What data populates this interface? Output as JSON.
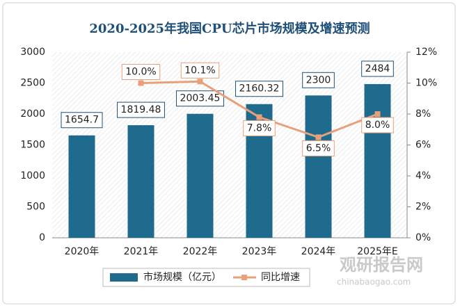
{
  "chart_data": {
    "type": "bar-line",
    "title": "2020-2025年我国CPU芯片市场规模及增速预测",
    "categories": [
      "2020年",
      "2021年",
      "2022年",
      "2023年",
      "2024年",
      "2025年E"
    ],
    "series": [
      {
        "name": "市场规模（亿元）",
        "type": "bar",
        "color": "#1f6b8e",
        "values": [
          1654.7,
          1819.48,
          2003.45,
          2160.32,
          2300,
          2484
        ]
      },
      {
        "name": "同比增速",
        "type": "line",
        "axis": "y2",
        "color": "#e8a07a",
        "values": [
          null,
          10.0,
          10.1,
          7.8,
          6.5,
          8.0
        ],
        "value_labels": [
          null,
          "10.0%",
          "10.1%",
          "7.8%",
          "6.5%",
          "8.0%"
        ]
      }
    ],
    "ylim": [
      0,
      3000
    ],
    "yticks": [
      0,
      500,
      1000,
      1500,
      2000,
      2500,
      3000
    ],
    "y2lim": [
      0,
      12
    ],
    "y2ticks": [
      {
        "value": 0,
        "label": "0%"
      },
      {
        "value": 2,
        "label": "2%"
      },
      {
        "value": 4,
        "label": "4%"
      },
      {
        "value": 6,
        "label": "6%"
      },
      {
        "value": 8,
        "label": "8%"
      },
      {
        "value": 10,
        "label": "10%"
      },
      {
        "value": 12,
        "label": "12%"
      }
    ],
    "legend": "bottom",
    "watermark": [
      "观研报告网",
      "chinabaogao.com"
    ]
  }
}
